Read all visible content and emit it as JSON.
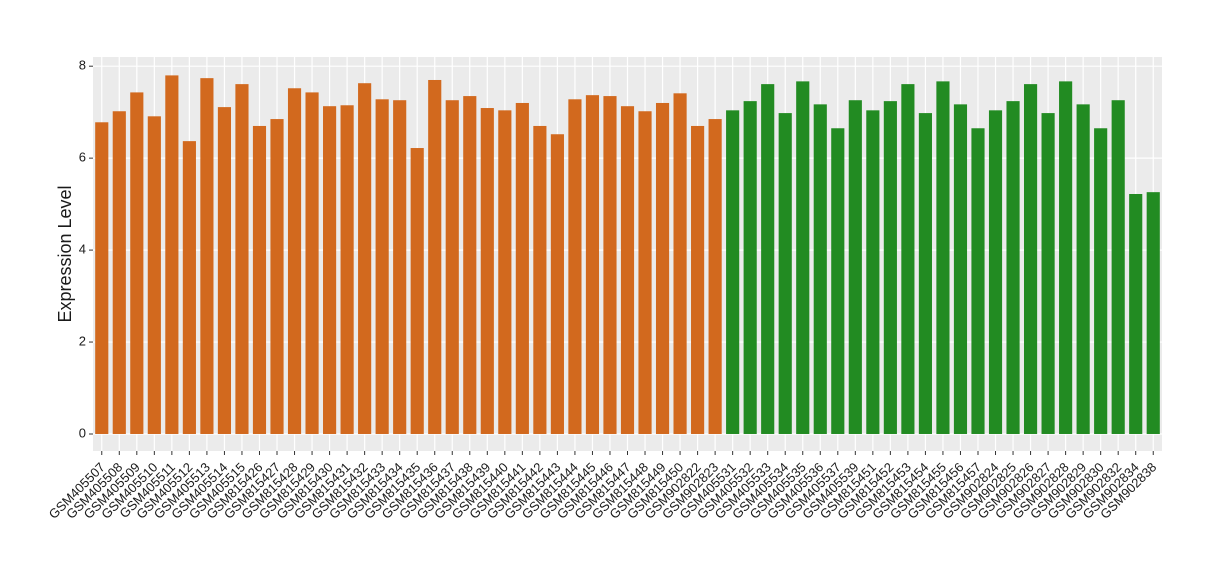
{
  "chart_data": {
    "type": "bar",
    "y_label": "Expression Level",
    "categories": [
      "GSM405507",
      "GSM405508",
      "GSM405509",
      "GSM405510",
      "GSM405511",
      "GSM405512",
      "GSM405513",
      "GSM405514",
      "GSM405515",
      "GSM815426",
      "GSM815427",
      "GSM815428",
      "GSM815429",
      "GSM815430",
      "GSM815431",
      "GSM815432",
      "GSM815433",
      "GSM815434",
      "GSM815435",
      "GSM815436",
      "GSM815437",
      "GSM815438",
      "GSM815439",
      "GSM815440",
      "GSM815441",
      "GSM815442",
      "GSM815443",
      "GSM815444",
      "GSM815445",
      "GSM815446",
      "GSM815447",
      "GSM815448",
      "GSM815449",
      "GSM815450",
      "GSM902822",
      "GSM902823",
      "GSM405531",
      "GSM405532",
      "GSM405533",
      "GSM405534",
      "GSM405535",
      "GSM405536",
      "GSM405537",
      "GSM405539",
      "GSM815451",
      "GSM815452",
      "GSM815453",
      "GSM815454",
      "GSM815455",
      "GSM815456",
      "GSM815457",
      "GSM902824",
      "GSM902825",
      "GSM902826",
      "GSM902827",
      "GSM902828",
      "GSM902829",
      "GSM902830",
      "GSM902832",
      "GSM902834",
      "GSM902838"
    ],
    "values": [
      6.78,
      7.02,
      7.43,
      6.91,
      7.8,
      6.37,
      7.74,
      7.11,
      7.61,
      6.7,
      6.85,
      7.52,
      7.43,
      7.13,
      7.15,
      7.63,
      7.28,
      7.26,
      6.22,
      7.7,
      7.26,
      7.35,
      7.09,
      7.04,
      7.2,
      6.7,
      6.52,
      7.28,
      7.37,
      7.35,
      7.13,
      7.02,
      7.2,
      7.41,
      6.7,
      6.85,
      7.04,
      7.24,
      7.61,
      6.98,
      7.67,
      7.17,
      6.65,
      7.26,
      7.04,
      7.24,
      7.61,
      6.98,
      7.67,
      7.17,
      6.65,
      7.04,
      7.24,
      7.61,
      6.98,
      7.67,
      7.17,
      6.65,
      7.26,
      5.22,
      5.26
    ],
    "colors": [
      "#D2691E",
      "#D2691E",
      "#D2691E",
      "#D2691E",
      "#D2691E",
      "#D2691E",
      "#D2691E",
      "#D2691E",
      "#D2691E",
      "#D2691E",
      "#D2691E",
      "#D2691E",
      "#D2691E",
      "#D2691E",
      "#D2691E",
      "#D2691E",
      "#D2691E",
      "#D2691E",
      "#D2691E",
      "#D2691E",
      "#D2691E",
      "#D2691E",
      "#D2691E",
      "#D2691E",
      "#D2691E",
      "#D2691E",
      "#D2691E",
      "#D2691E",
      "#D2691E",
      "#D2691E",
      "#D2691E",
      "#D2691E",
      "#D2691E",
      "#D2691E",
      "#D2691E",
      "#D2691E",
      "#228B22",
      "#228B22",
      "#228B22",
      "#228B22",
      "#228B22",
      "#228B22",
      "#228B22",
      "#228B22",
      "#228B22",
      "#228B22",
      "#228B22",
      "#228B22",
      "#228B22",
      "#228B22",
      "#228B22",
      "#228B22",
      "#228B22",
      "#228B22",
      "#228B22",
      "#228B22",
      "#228B22",
      "#228B22",
      "#228B22",
      "#228B22",
      "#228B22"
    ],
    "ylim": [
      -0.37,
      8.2
    ],
    "yticks": [
      0,
      2,
      4,
      6,
      8
    ],
    "grid": true
  }
}
